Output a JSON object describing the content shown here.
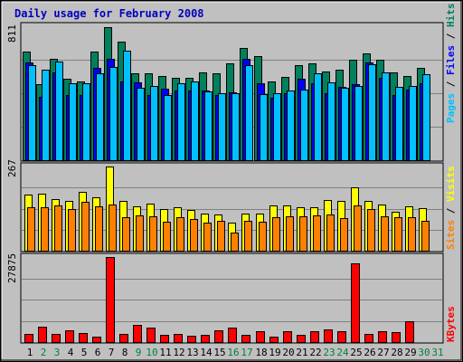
{
  "chart_data": {
    "type": "bar",
    "title": "Daily usage for February 2008",
    "categories": [
      "1",
      "2",
      "3",
      "4",
      "5",
      "6",
      "7",
      "8",
      "9",
      "10",
      "11",
      "12",
      "13",
      "14",
      "15",
      "16",
      "17",
      "18",
      "19",
      "20",
      "21",
      "22",
      "23",
      "24",
      "25",
      "26",
      "27",
      "28",
      "29",
      "30",
      "31"
    ],
    "weekend_days": [
      2,
      3,
      9,
      10,
      16,
      17,
      23,
      24,
      30,
      31
    ],
    "colors": {
      "background": "#c0c0c0",
      "title": "#0000c0",
      "hits": "#00805c",
      "files": "#0000ff",
      "pages": "#00c0ff",
      "visits": "#ffff00",
      "sites": "#ff8000",
      "kbytes": "#ff0000",
      "weekday_tick": "#000000",
      "weekend_tick": "#008040"
    },
    "panels": [
      {
        "max_label": "811",
        "ylim": [
          0,
          811
        ],
        "legend": [
          {
            "text": "Hits",
            "color": "#00805c"
          },
          {
            "text": "Files",
            "color": "#0000ff"
          },
          {
            "text": "Pages",
            "color": "#00c0ff"
          }
        ],
        "series": [
          {
            "name": "Hits",
            "values": [
              658,
              460,
              614,
              492,
              478,
              655,
              808,
              716,
              527,
              526,
              507,
              496,
              498,
              529,
              528,
              586,
              678,
              632,
              479,
              503,
              574,
              589,
              538,
              547,
              608,
              646,
              607,
              533,
              508,
              559,
              null
            ]
          },
          {
            "name": "Files",
            "values": [
              590,
              383,
              530,
              395,
              394,
              560,
              612,
              476,
              473,
              394,
              432,
              420,
              420,
              420,
              395,
              411,
              614,
              467,
              380,
              407,
              494,
              466,
              404,
              442,
              460,
              590,
              496,
              394,
              426,
              466,
              null
            ]
          },
          {
            "name": "Pages",
            "values": [
              574,
              549,
              596,
              468,
              464,
              527,
              562,
              664,
              441,
              448,
              396,
              464,
              476,
              415,
              404,
              408,
              578,
              402,
              408,
              424,
              428,
              528,
              473,
              441,
              448,
              583,
              532,
              443,
              452,
              521,
              null
            ]
          }
        ]
      },
      {
        "max_label": "267",
        "ylim": [
          0,
          267
        ],
        "legend": [
          {
            "text": "Visits",
            "color": "#ffff00"
          },
          {
            "text": "Sites",
            "color": "#ff8000"
          }
        ],
        "series": [
          {
            "name": "Visits",
            "values": [
              178,
              182,
              163,
              157,
              186,
              170,
              267,
              159,
              142,
              148,
              133,
              139,
              129,
              118,
              115,
              89,
              117,
              118,
              143,
              143,
              137,
              139,
              162,
              157,
              201,
              157,
              145,
              124,
              142,
              135,
              null
            ]
          },
          {
            "name": "Sites",
            "values": [
              138,
              139,
              144,
              132,
              155,
              142,
              146,
              107,
              112,
              108,
              93,
              106,
              100,
              90,
              96,
              56,
              96,
              92,
              107,
              108,
              109,
              111,
              115,
              104,
              143,
              133,
              110,
              105,
              107,
              96,
              null
            ]
          }
        ]
      },
      {
        "max_label": "27875",
        "ylim": [
          0,
          27875
        ],
        "legend": [
          {
            "text": "KBytes",
            "color": "#ff0000"
          }
        ],
        "series": [
          {
            "name": "KBytes",
            "values": [
              2800,
              5100,
              2700,
              4000,
              3100,
              1800,
              27875,
              2600,
              5700,
              4800,
              2300,
              2800,
              2000,
              2500,
              3800,
              4600,
              2400,
              3500,
              1900,
              3700,
              2500,
              3500,
              4200,
              3500,
              25800,
              2600,
              3500,
              3200,
              6700,
              null,
              null
            ]
          }
        ]
      }
    ]
  }
}
